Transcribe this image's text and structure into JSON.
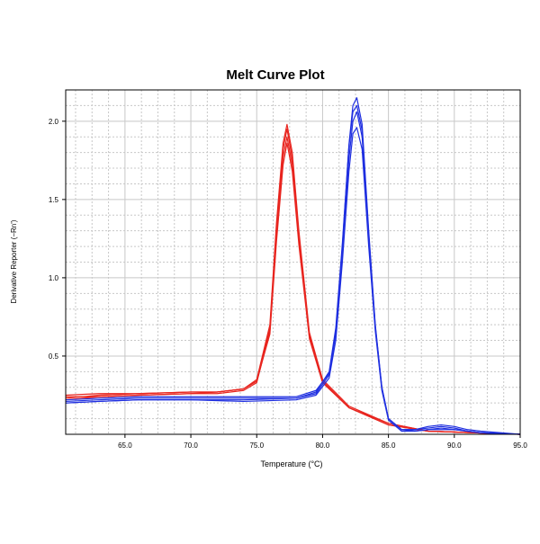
{
  "chart_data": {
    "type": "line",
    "title": "Melt Curve Plot",
    "xlabel": "Temperature (°C)",
    "ylabel": "Derivative Reporter (−Rn')",
    "xlim": [
      60.5,
      95.0
    ],
    "ylim": [
      0.0,
      2.2
    ],
    "x_ticks": [
      65.0,
      70.0,
      75.0,
      80.0,
      85.0,
      90.0,
      95.0
    ],
    "x_tick_labels": [
      "65.0",
      "70.0",
      "75.0",
      "80.0",
      "85.0",
      "90.0",
      "95.0"
    ],
    "y_ticks": [
      0.5,
      1.0,
      1.5,
      2.0
    ],
    "y_tick_labels": [
      "0.5",
      "1.0",
      "1.5",
      "2.0"
    ],
    "grid": true,
    "legend": "none",
    "colors": {
      "red": "#e8251f",
      "blue": "#1f2fe0",
      "grid": "#c8c8c8",
      "axis": "#000000"
    },
    "series": [
      {
        "color": "#e8251f",
        "x": [
          60.5,
          63,
          66,
          70,
          72,
          74,
          75,
          76,
          76.5,
          77,
          77.3,
          77.7,
          78.2,
          79,
          80,
          82,
          85,
          88,
          95
        ],
        "values": [
          0.23,
          0.25,
          0.26,
          0.27,
          0.27,
          0.29,
          0.35,
          0.7,
          1.35,
          1.86,
          1.98,
          1.8,
          1.3,
          0.65,
          0.35,
          0.18,
          0.07,
          0.02,
          0.0
        ]
      },
      {
        "color": "#e8251f",
        "x": [
          60.5,
          63,
          66,
          70,
          72,
          74,
          75,
          76,
          76.5,
          77,
          77.3,
          77.7,
          78.2,
          79,
          80,
          82,
          85,
          88,
          95
        ],
        "values": [
          0.24,
          0.24,
          0.25,
          0.26,
          0.27,
          0.29,
          0.34,
          0.68,
          1.3,
          1.82,
          1.95,
          1.76,
          1.27,
          0.63,
          0.34,
          0.17,
          0.07,
          0.02,
          0.0
        ]
      },
      {
        "color": "#e8251f",
        "x": [
          60.5,
          63,
          66,
          70,
          72,
          74,
          75,
          76,
          76.5,
          77,
          77.3,
          77.7,
          78.2,
          79,
          80,
          82,
          85,
          88,
          95
        ],
        "values": [
          0.22,
          0.24,
          0.25,
          0.26,
          0.26,
          0.28,
          0.33,
          0.66,
          1.27,
          1.77,
          1.9,
          1.72,
          1.24,
          0.62,
          0.33,
          0.17,
          0.06,
          0.02,
          0.0
        ]
      },
      {
        "color": "#e8251f",
        "x": [
          60.5,
          63,
          66,
          70,
          72,
          74,
          75,
          76,
          76.5,
          77,
          77.3,
          77.7,
          78.2,
          79,
          80,
          82,
          85,
          88,
          95
        ],
        "values": [
          0.25,
          0.26,
          0.26,
          0.27,
          0.27,
          0.29,
          0.34,
          0.64,
          1.23,
          1.72,
          1.86,
          1.68,
          1.21,
          0.61,
          0.33,
          0.17,
          0.06,
          0.02,
          0.0
        ]
      },
      {
        "color": "#1f2fe0",
        "x": [
          60.5,
          63,
          66,
          70,
          74,
          78,
          79.5,
          80.5,
          81,
          81.5,
          82,
          82.3,
          82.6,
          83,
          83.5,
          84,
          84.5,
          85,
          86,
          87,
          88,
          89,
          90,
          91,
          92,
          95
        ],
        "values": [
          0.2,
          0.21,
          0.22,
          0.22,
          0.22,
          0.23,
          0.26,
          0.38,
          0.65,
          1.2,
          1.85,
          2.1,
          2.15,
          1.98,
          1.3,
          0.7,
          0.3,
          0.1,
          0.03,
          0.03,
          0.05,
          0.06,
          0.05,
          0.03,
          0.02,
          0.0
        ]
      },
      {
        "color": "#1f2fe0",
        "x": [
          60.5,
          63,
          66,
          70,
          74,
          78,
          79.5,
          80.5,
          81,
          81.5,
          82,
          82.3,
          82.6,
          83,
          83.5,
          84,
          84.5,
          85,
          86,
          87,
          88,
          89,
          90,
          91,
          92,
          95
        ],
        "values": [
          0.21,
          0.22,
          0.23,
          0.23,
          0.23,
          0.23,
          0.27,
          0.4,
          0.68,
          1.22,
          1.84,
          2.06,
          2.1,
          1.94,
          1.28,
          0.69,
          0.3,
          0.1,
          0.03,
          0.03,
          0.04,
          0.05,
          0.04,
          0.02,
          0.01,
          0.0
        ]
      },
      {
        "color": "#1f2fe0",
        "x": [
          60.5,
          63,
          66,
          70,
          74,
          78,
          79.5,
          80.5,
          81,
          81.5,
          82,
          82.3,
          82.6,
          83,
          83.5,
          84,
          84.5,
          85,
          86,
          87,
          88,
          89,
          90,
          91,
          92,
          95
        ],
        "values": [
          0.22,
          0.23,
          0.24,
          0.24,
          0.24,
          0.24,
          0.28,
          0.39,
          0.64,
          1.16,
          1.76,
          2.0,
          2.06,
          1.9,
          1.25,
          0.68,
          0.29,
          0.1,
          0.03,
          0.02,
          0.03,
          0.04,
          0.03,
          0.02,
          0.01,
          0.0
        ]
      },
      {
        "color": "#1f2fe0",
        "x": [
          60.5,
          63,
          66,
          70,
          74,
          78,
          79.5,
          80.5,
          81,
          81.5,
          82,
          82.3,
          82.6,
          83,
          83.5,
          84,
          84.5,
          85,
          86,
          87,
          88,
          89,
          90,
          91,
          92,
          95
        ],
        "values": [
          0.2,
          0.21,
          0.22,
          0.22,
          0.21,
          0.22,
          0.25,
          0.36,
          0.6,
          1.1,
          1.68,
          1.92,
          1.96,
          1.82,
          1.2,
          0.66,
          0.28,
          0.09,
          0.02,
          0.02,
          0.03,
          0.03,
          0.03,
          0.02,
          0.01,
          0.0
        ]
      }
    ]
  }
}
